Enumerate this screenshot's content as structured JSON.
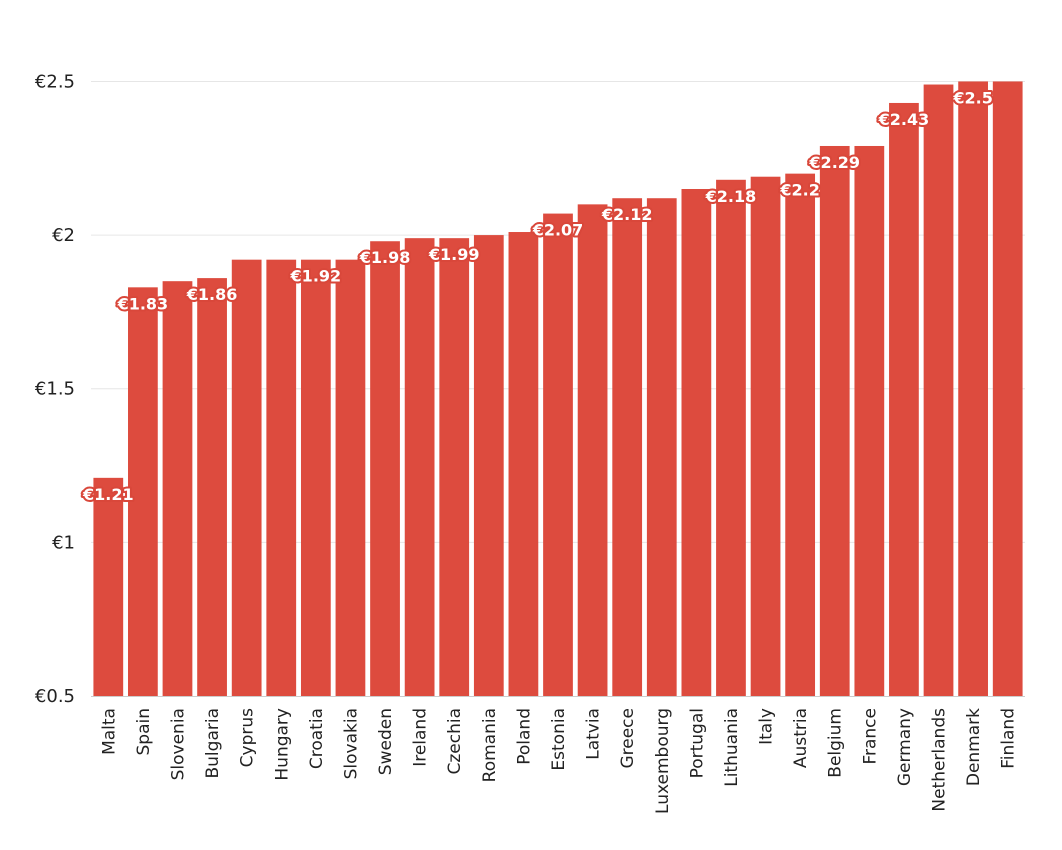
{
  "chart_data": {
    "type": "bar",
    "categories": [
      "Malta",
      "Spain",
      "Slovenia",
      "Bulgaria",
      "Cyprus",
      "Hungary",
      "Croatia",
      "Slovakia",
      "Sweden",
      "Ireland",
      "Czechia",
      "Romania",
      "Poland",
      "Estonia",
      "Latvia",
      "Greece",
      "Luxembourg",
      "Portugal",
      "Lithuania",
      "Italy",
      "Austria",
      "Belgium",
      "France",
      "Germany",
      "Netherlands",
      "Denmark",
      "Finland"
    ],
    "values": [
      1.21,
      1.83,
      1.85,
      1.86,
      1.92,
      1.92,
      1.92,
      1.92,
      1.98,
      1.99,
      1.99,
      2.0,
      2.01,
      2.07,
      2.1,
      2.12,
      2.12,
      2.15,
      2.18,
      2.19,
      2.2,
      2.29,
      2.29,
      2.43,
      2.49,
      2.5,
      2.5
    ],
    "data_labels": [
      "€1.21",
      "€1.83",
      "",
      "€1.86",
      "",
      "",
      "€1.92",
      "",
      "€1.98",
      "",
      "€1.99",
      "",
      "",
      "€2.07",
      "",
      "€2.12",
      "",
      "",
      "€2.18",
      "",
      "€2.2",
      "€2.29",
      "",
      "€2.43",
      "",
      "€2.5",
      ""
    ],
    "ylim": [
      0.5,
      2.7
    ],
    "yticks": [
      0.5,
      1,
      1.5,
      2,
      2.5
    ],
    "ytick_labels": [
      "€0.5",
      "€1",
      "€1.5",
      "€2",
      "€2.5"
    ],
    "title": "",
    "xlabel": "",
    "ylabel": "",
    "grid": true,
    "bar_color": "#dd4b3e",
    "label_outline_color": "#d9473a"
  }
}
